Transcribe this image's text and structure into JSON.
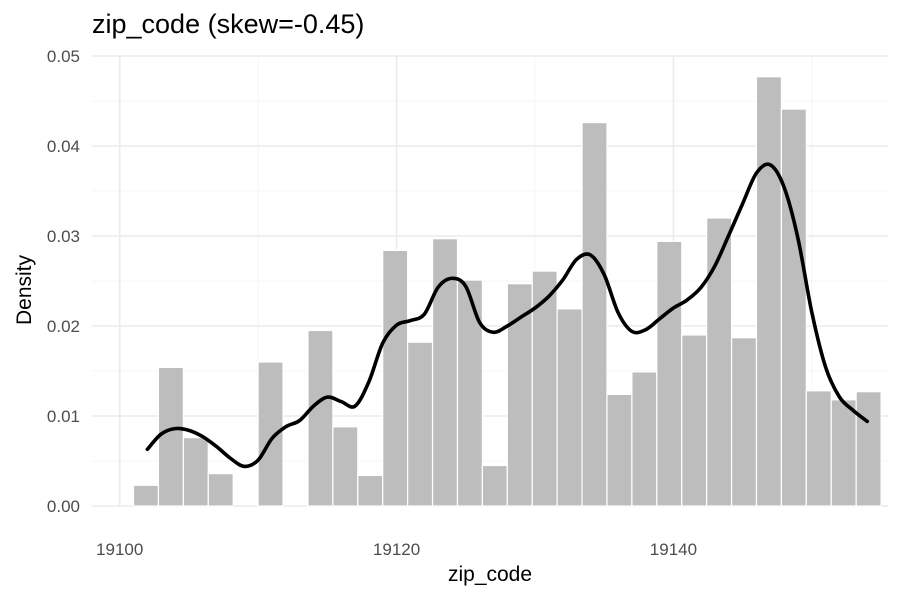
{
  "chart_data": {
    "type": "histogram",
    "title": "zip_code (skew=-0.45)",
    "xlabel": "zip_code",
    "ylabel": "Density",
    "xlim": [
      19098.0,
      19155.5
    ],
    "ylim": [
      0.0,
      0.05
    ],
    "x_ticks": [
      19100,
      19120,
      19140
    ],
    "x_tick_labels": [
      "19100",
      "19120",
      "19140"
    ],
    "y_ticks": [
      0.0,
      0.01,
      0.02,
      0.03,
      0.04,
      0.05
    ],
    "y_tick_labels": [
      "0.00",
      "0.01",
      "0.02",
      "0.03",
      "0.04",
      "0.05"
    ],
    "grid": true,
    "bar_color": "#bdbdbd",
    "line_color": "#000000",
    "bins": [
      {
        "x_start": 19101.0,
        "x_end": 19102.8,
        "density": 0.0023
      },
      {
        "x_start": 19102.8,
        "x_end": 19104.6,
        "density": 0.0154
      },
      {
        "x_start": 19104.6,
        "x_end": 19106.4,
        "density": 0.0076
      },
      {
        "x_start": 19106.4,
        "x_end": 19108.2,
        "density": 0.0036
      },
      {
        "x_start": 19108.2,
        "x_end": 19110.0,
        "density": 0.0
      },
      {
        "x_start": 19110.0,
        "x_end": 19111.8,
        "density": 0.016
      },
      {
        "x_start": 19111.8,
        "x_end": 19113.6,
        "density": 0.0
      },
      {
        "x_start": 19113.6,
        "x_end": 19115.4,
        "density": 0.0195
      },
      {
        "x_start": 19115.4,
        "x_end": 19117.2,
        "density": 0.0088
      },
      {
        "x_start": 19117.2,
        "x_end": 19119.0,
        "density": 0.0034
      },
      {
        "x_start": 19119.0,
        "x_end": 19120.8,
        "density": 0.0284
      },
      {
        "x_start": 19120.8,
        "x_end": 19122.6,
        "density": 0.0182
      },
      {
        "x_start": 19122.6,
        "x_end": 19124.4,
        "density": 0.0297
      },
      {
        "x_start": 19124.4,
        "x_end": 19126.2,
        "density": 0.0251
      },
      {
        "x_start": 19126.2,
        "x_end": 19128.0,
        "density": 0.0045
      },
      {
        "x_start": 19128.0,
        "x_end": 19129.8,
        "density": 0.0247
      },
      {
        "x_start": 19129.8,
        "x_end": 19131.6,
        "density": 0.0261
      },
      {
        "x_start": 19131.6,
        "x_end": 19133.4,
        "density": 0.0219
      },
      {
        "x_start": 19133.4,
        "x_end": 19135.2,
        "density": 0.0426
      },
      {
        "x_start": 19135.2,
        "x_end": 19137.0,
        "density": 0.0124
      },
      {
        "x_start": 19137.0,
        "x_end": 19138.8,
        "density": 0.0149
      },
      {
        "x_start": 19138.8,
        "x_end": 19140.6,
        "density": 0.0294
      },
      {
        "x_start": 19140.6,
        "x_end": 19142.4,
        "density": 0.019
      },
      {
        "x_start": 19142.4,
        "x_end": 19144.2,
        "density": 0.032
      },
      {
        "x_start": 19144.2,
        "x_end": 19146.0,
        "density": 0.0187
      },
      {
        "x_start": 19146.0,
        "x_end": 19147.8,
        "density": 0.0477
      },
      {
        "x_start": 19147.8,
        "x_end": 19149.6,
        "density": 0.0441
      },
      {
        "x_start": 19149.6,
        "x_end": 19151.4,
        "density": 0.0128
      },
      {
        "x_start": 19151.4,
        "x_end": 19153.2,
        "density": 0.0118
      },
      {
        "x_start": 19153.2,
        "x_end": 19155.0,
        "density": 0.0127
      }
    ],
    "density_curve": {
      "x": [
        19102.0,
        19103.0,
        19104.0,
        19105.0,
        19106.0,
        19107.0,
        19108.0,
        19109.0,
        19110.0,
        19111.0,
        19112.0,
        19113.0,
        19114.0,
        19115.0,
        19116.0,
        19117.0,
        19118.0,
        19119.0,
        19120.0,
        19121.0,
        19122.0,
        19123.0,
        19124.0,
        19125.0,
        19126.0,
        19127.0,
        19128.0,
        19129.0,
        19130.0,
        19131.0,
        19132.0,
        19133.0,
        19134.0,
        19135.0,
        19136.0,
        19137.0,
        19138.0,
        19139.0,
        19140.0,
        19141.0,
        19142.0,
        19143.0,
        19144.0,
        19145.0,
        19146.0,
        19147.0,
        19148.0,
        19149.0,
        19150.0,
        19151.0,
        19152.0,
        19153.0,
        19154.0
      ],
      "y": [
        0.0063,
        0.008,
        0.0086,
        0.0084,
        0.0077,
        0.0066,
        0.0053,
        0.0044,
        0.0051,
        0.0075,
        0.0088,
        0.0095,
        0.0111,
        0.0121,
        0.0116,
        0.0111,
        0.0138,
        0.0181,
        0.0201,
        0.0206,
        0.0213,
        0.0243,
        0.0253,
        0.0244,
        0.0204,
        0.0193,
        0.02,
        0.021,
        0.022,
        0.0233,
        0.0251,
        0.0274,
        0.0279,
        0.0257,
        0.0215,
        0.0194,
        0.0196,
        0.0208,
        0.022,
        0.0229,
        0.0243,
        0.0267,
        0.0301,
        0.0336,
        0.037,
        0.0379,
        0.0354,
        0.0297,
        0.0215,
        0.0154,
        0.0121,
        0.0106,
        0.0094
      ]
    }
  }
}
